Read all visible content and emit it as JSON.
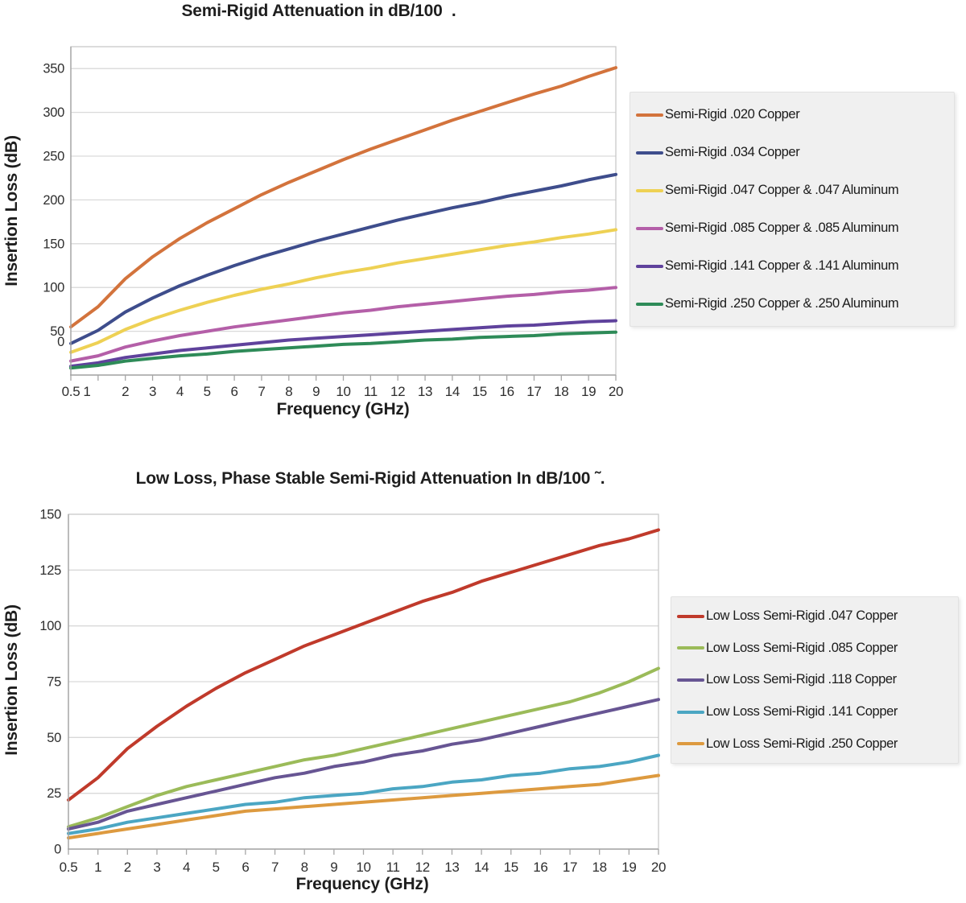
{
  "palette": {
    "grid": "#d9d9d9",
    "plot_border": "#c9c9c9",
    "axis": "#a6a6a6",
    "legend_bg": "#f0f0f0",
    "legend_border": "#e2e2e2",
    "title_text": "#1e1e1e",
    "tick_text": "#2e2e2e"
  },
  "chart_data": [
    {
      "type": "line",
      "title": "Semi-Rigid Attenuation in dB/100  .",
      "xlabel": "Frequency (GHz)",
      "ylabel": "Insertion Loss (dB)",
      "x_categories": [
        "0.5",
        "1",
        "2",
        "3",
        "4",
        "5",
        "6",
        "7",
        "8",
        "9",
        "10",
        "11",
        "12",
        "13",
        "14",
        "15",
        "16",
        "17",
        "18",
        "19",
        "20"
      ],
      "y_ticks": [
        350,
        300,
        250,
        200,
        150,
        100,
        50,
        0
      ],
      "ylim": [
        0,
        375
      ],
      "grid": true,
      "legend_position": "right",
      "series": [
        {
          "name": "Semi-Rigid .020 Copper",
          "color": "#d3733c",
          "values": [
            55,
            78,
            110,
            135,
            156,
            174,
            190,
            206,
            220,
            233,
            246,
            258,
            269,
            280,
            291,
            301,
            311,
            321,
            330,
            341,
            351
          ]
        },
        {
          "name": "Semi-Rigid .034 Copper",
          "color": "#3e4d8c",
          "values": [
            36,
            51,
            72,
            88,
            102,
            114,
            125,
            135,
            144,
            153,
            161,
            169,
            177,
            184,
            191,
            197,
            204,
            210,
            216,
            223,
            229
          ]
        },
        {
          "name": "Semi-Rigid .047 Copper & .047 Aluminum",
          "color": "#eed154",
          "values": [
            26,
            37,
            52,
            64,
            74,
            83,
            91,
            98,
            104,
            111,
            117,
            122,
            128,
            133,
            138,
            143,
            148,
            152,
            157,
            161,
            166
          ]
        },
        {
          "name": "Semi-Rigid .085 Copper & .085 Aluminum",
          "color": "#b45fa8",
          "values": [
            16,
            22,
            32,
            39,
            45,
            50,
            55,
            59,
            63,
            67,
            71,
            74,
            78,
            81,
            84,
            87,
            90,
            92,
            95,
            97,
            100
          ]
        },
        {
          "name": "Semi-Rigid .141 Copper & .141 Aluminum",
          "color": "#5f429c",
          "values": [
            10,
            14,
            20,
            24,
            28,
            31,
            34,
            37,
            40,
            42,
            44,
            46,
            48,
            50,
            52,
            54,
            56,
            57,
            59,
            61,
            62
          ]
        },
        {
          "name": "Semi-Rigid .250 Copper & .250 Aluminum",
          "color": "#2e8b58",
          "values": [
            8,
            11,
            16,
            19,
            22,
            24,
            27,
            29,
            31,
            33,
            35,
            36,
            38,
            40,
            41,
            43,
            44,
            45,
            47,
            48,
            49
          ]
        }
      ]
    },
    {
      "type": "line",
      "title": "Low Loss, Phase Stable Semi-Rigid Attenuation In dB/100 ˜.",
      "xlabel": "Frequency (GHz)",
      "ylabel": "Insertion Loss (dB)",
      "x_categories": [
        "0.5",
        "1",
        "2",
        "3",
        "4",
        "5",
        "6",
        "7",
        "8",
        "9",
        "10",
        "11",
        "12",
        "13",
        "14",
        "15",
        "16",
        "17",
        "18",
        "19",
        "20"
      ],
      "y_ticks": [
        150,
        125,
        100,
        75,
        50,
        25,
        0
      ],
      "ylim": [
        0,
        150
      ],
      "grid": true,
      "legend_position": "right",
      "series": [
        {
          "name": "Low Loss Semi-Rigid .047 Copper",
          "color": "#c03a2b",
          "values": [
            22,
            32,
            45,
            55,
            64,
            72,
            79,
            85,
            91,
            96,
            101,
            106,
            111,
            115,
            120,
            124,
            128,
            132,
            136,
            139,
            143
          ]
        },
        {
          "name": "Low Loss Semi-Rigid .085 Copper",
          "color": "#9bbb59",
          "values": [
            10,
            14,
            19,
            24,
            28,
            31,
            34,
            37,
            40,
            42,
            45,
            48,
            51,
            54,
            57,
            60,
            63,
            66,
            70,
            75,
            81
          ]
        },
        {
          "name": "Low Loss Semi-Rigid .118 Copper",
          "color": "#675593",
          "values": [
            9,
            12,
            17,
            20,
            23,
            26,
            29,
            32,
            34,
            37,
            39,
            42,
            44,
            47,
            49,
            52,
            55,
            58,
            61,
            64,
            67
          ]
        },
        {
          "name": "Low Loss Semi-Rigid .141 Copper",
          "color": "#4ba6c3",
          "values": [
            7,
            9,
            12,
            14,
            16,
            18,
            20,
            21,
            23,
            24,
            25,
            27,
            28,
            30,
            31,
            33,
            34,
            36,
            37,
            39,
            42
          ]
        },
        {
          "name": "Low Loss Semi-Rigid .250 Copper",
          "color": "#dd9a3f",
          "values": [
            5,
            7,
            9,
            11,
            13,
            15,
            17,
            18,
            19,
            20,
            21,
            22,
            23,
            24,
            25,
            26,
            27,
            28,
            29,
            31,
            33
          ]
        }
      ]
    }
  ]
}
